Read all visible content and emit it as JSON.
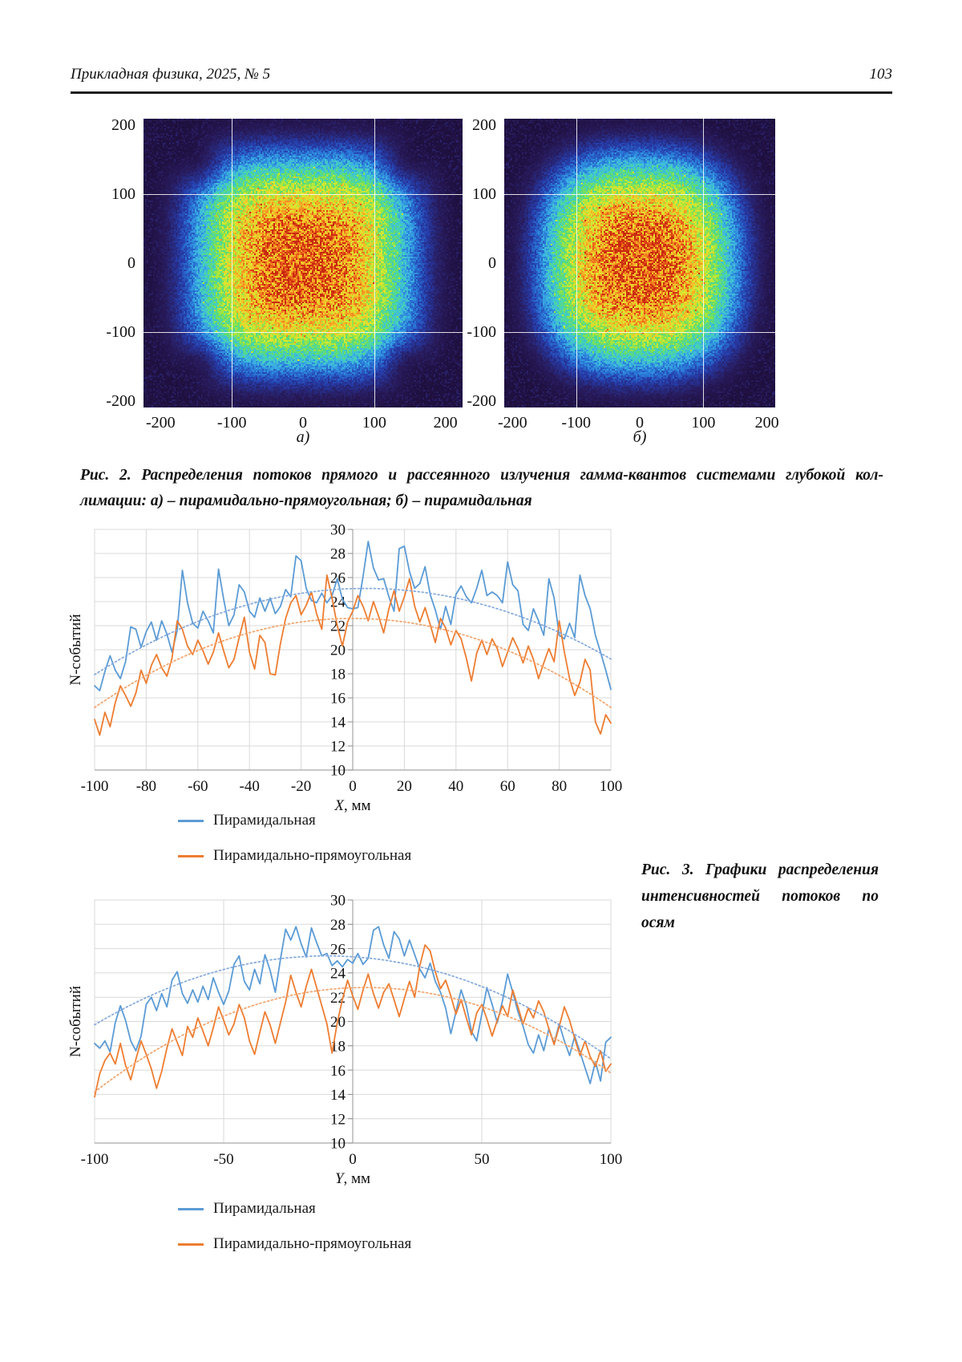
{
  "header": {
    "journal": "Прикладная физика, 2025, № 5",
    "page_number": "103"
  },
  "fig2": {
    "caption_lines": [
      "Рис. 2. Распределения потоков прямого и рассеянного излучения гамма-квантов системами глубокой кол-",
      "лимации: а) – пирамидально-прямоугольная; б) – пирамидальная"
    ]
  },
  "fig3": {
    "caption_lines": [
      "Рис. 3. Графики распределения",
      "интенсивностей потоков по",
      "осям"
    ]
  },
  "chart_data": [
    {
      "id": "heatmap-a",
      "type": "heatmap",
      "panel_label": "а)",
      "x_ticks": [
        -200,
        -100,
        0,
        100,
        200
      ],
      "y_ticks": [
        200,
        100,
        0,
        -100,
        -200
      ],
      "x_range": [
        -224,
        224
      ],
      "y_range": [
        -209,
        209
      ],
      "gridlines": [
        -100,
        100
      ],
      "grid_color": "#ffffff",
      "beam": {
        "p_norm": 3.6,
        "radius": 140,
        "falloff": 3,
        "peak": 0.88,
        "corner_wedges": true,
        "seed": 7
      },
      "colormap": [
        [
          0.0,
          "#1b0c36"
        ],
        [
          0.06,
          "#281a5a"
        ],
        [
          0.14,
          "#263caa"
        ],
        [
          0.22,
          "#2978d8"
        ],
        [
          0.3,
          "#3cb4e4"
        ],
        [
          0.38,
          "#46d4b4"
        ],
        [
          0.46,
          "#60dc6e"
        ],
        [
          0.55,
          "#a0e63e"
        ],
        [
          0.64,
          "#dee830"
        ],
        [
          0.74,
          "#f4c428"
        ],
        [
          0.84,
          "#f38c22"
        ],
        [
          0.92,
          "#e85418"
        ],
        [
          1.0,
          "#c82810"
        ]
      ]
    },
    {
      "id": "heatmap-b",
      "type": "heatmap",
      "panel_label": "б)",
      "x_ticks": [
        -200,
        -100,
        0,
        100,
        200
      ],
      "y_ticks": [
        200,
        100,
        0,
        -100,
        -200
      ],
      "x_range": [
        -213,
        213
      ],
      "y_range": [
        -209,
        209
      ],
      "gridlines": [
        -100,
        100
      ],
      "grid_color": "#ffffff",
      "beam": {
        "p_norm": 2.7,
        "radius": 140,
        "falloff": 3,
        "peak": 0.88,
        "corner_wedges": false,
        "seed": 13
      },
      "colormap": [
        [
          0.0,
          "#1b0c36"
        ],
        [
          0.06,
          "#281a5a"
        ],
        [
          0.14,
          "#263caa"
        ],
        [
          0.22,
          "#2978d8"
        ],
        [
          0.3,
          "#3cb4e4"
        ],
        [
          0.38,
          "#46d4b4"
        ],
        [
          0.46,
          "#60dc6e"
        ],
        [
          0.55,
          "#a0e63e"
        ],
        [
          0.64,
          "#dee830"
        ],
        [
          0.74,
          "#f4c428"
        ],
        [
          0.84,
          "#f38c22"
        ],
        [
          0.92,
          "#e85418"
        ],
        [
          1.0,
          "#c82810"
        ]
      ]
    },
    {
      "id": "profile-x",
      "type": "line",
      "xlabel": "X, мм",
      "ylabel": "N-событий",
      "xlim": [
        -100,
        100
      ],
      "ylim": [
        10,
        30
      ],
      "x_ticks": [
        -100,
        -80,
        -60,
        -40,
        -20,
        0,
        20,
        40,
        60,
        80,
        100
      ],
      "y_ticks": [
        10,
        12,
        14,
        16,
        18,
        20,
        22,
        24,
        26,
        28,
        30
      ],
      "grid_color": "#d9d9d9",
      "axis_color": "#a6a6a6",
      "x_start": -100,
      "x_step": 2,
      "series": [
        {
          "name": "Пирамидальная",
          "color": "#5B9BD5",
          "style": "solid",
          "values": [
            17.0,
            16.6,
            18.2,
            19.5,
            18.3,
            17.6,
            19.0,
            21.9,
            21.7,
            20.2,
            21.5,
            22.3,
            20.8,
            22.4,
            21.3,
            19.8,
            21.6,
            26.6,
            23.9,
            22.2,
            21.8,
            23.2,
            22.4,
            21.4,
            26.7,
            24.2,
            22.0,
            22.9,
            25.4,
            24.8,
            23.2,
            22.7,
            24.3,
            23.2,
            24.3,
            23.0,
            23.6,
            25.0,
            24.4,
            27.8,
            27.4,
            25.1,
            24.1,
            23.9,
            24.7,
            23.9,
            24.5,
            25.9,
            24.2,
            23.5,
            23.4,
            23.5,
            26.1,
            29.0,
            26.8,
            25.8,
            25.9,
            24.4,
            23.2,
            28.4,
            28.6,
            26.5,
            25.1,
            25.5,
            26.9,
            24.6,
            23.3,
            21.7,
            23.6,
            22.1,
            24.6,
            25.3,
            24.4,
            23.9,
            25.1,
            26.6,
            24.5,
            24.8,
            24.5,
            23.9,
            27.3,
            25.4,
            24.9,
            22.1,
            21.6,
            23.4,
            22.4,
            21.2,
            25.9,
            24.3,
            21.2,
            20.9,
            22.2,
            21.0,
            26.2,
            24.5,
            23.4,
            21.2,
            19.8,
            18.3,
            16.7
          ]
        },
        {
          "name": "Пирамидально-прямоугольная",
          "color": "#ED7D31",
          "style": "solid",
          "values": [
            14.2,
            12.9,
            14.8,
            13.6,
            15.6,
            17.0,
            16.2,
            15.3,
            16.4,
            18.3,
            17.2,
            18.7,
            19.6,
            18.5,
            17.8,
            19.3,
            22.4,
            21.7,
            20.3,
            19.6,
            20.8,
            19.9,
            18.8,
            19.8,
            21.4,
            19.9,
            18.5,
            19.2,
            21.0,
            22.7,
            19.8,
            18.4,
            21.2,
            20.6,
            18.0,
            17.9,
            20.5,
            22.6,
            23.9,
            24.5,
            22.9,
            23.7,
            24.8,
            23.0,
            21.7,
            26.2,
            24.3,
            22.0,
            20.3,
            22.3,
            23.2,
            24.5,
            23.6,
            22.4,
            24.0,
            22.8,
            21.4,
            23.4,
            24.9,
            23.2,
            24.4,
            25.9,
            23.6,
            22.3,
            23.5,
            22.1,
            20.6,
            22.6,
            21.8,
            20.4,
            21.6,
            20.9,
            19.3,
            17.4,
            19.7,
            20.8,
            19.6,
            20.9,
            20.1,
            18.6,
            19.8,
            21.0,
            20.1,
            18.9,
            20.3,
            19.2,
            17.6,
            18.9,
            20.1,
            19.0,
            22.4,
            19.8,
            17.6,
            16.2,
            17.3,
            19.2,
            18.3,
            14.0,
            13.0,
            14.6,
            13.9
          ]
        },
        {
          "trend_of": "Пирамидальная",
          "color": "#85A9DC",
          "style": "dotted",
          "poly": [
            25.08,
            0.0065,
            -0.00065
          ]
        },
        {
          "trend_of": "Пирамидально-прямоугольная",
          "color": "#F2A36B",
          "style": "dotted",
          "poly": [
            22.6,
            0.0,
            -0.00074
          ]
        }
      ],
      "legend": [
        {
          "label": "Пирамидальная",
          "color": "#5B9BD5"
        },
        {
          "label": "Пирамидально-прямоугольная",
          "color": "#ED7D31"
        }
      ]
    },
    {
      "id": "profile-y",
      "type": "line",
      "xlabel": "Y, мм",
      "ylabel": "N-событий",
      "xlim": [
        -100,
        100
      ],
      "ylim": [
        10,
        30
      ],
      "x_ticks": [
        -100,
        -50,
        0,
        50,
        100
      ],
      "y_ticks": [
        10,
        12,
        14,
        16,
        18,
        20,
        22,
        24,
        26,
        28,
        30
      ],
      "grid_color": "#d9d9d9",
      "axis_color": "#a6a6a6",
      "x_start": -100,
      "x_step": 2,
      "series": [
        {
          "name": "Пирамидальная",
          "color": "#5B9BD5",
          "style": "solid",
          "values": [
            18.2,
            17.8,
            18.4,
            17.5,
            19.9,
            21.3,
            20.1,
            18.4,
            17.6,
            18.8,
            21.4,
            22.0,
            20.9,
            22.3,
            21.2,
            23.4,
            24.1,
            22.3,
            21.5,
            22.6,
            21.6,
            22.9,
            21.8,
            23.6,
            22.4,
            21.4,
            22.5,
            24.7,
            25.4,
            23.3,
            22.6,
            24.3,
            23.1,
            25.5,
            24.2,
            22.4,
            25.1,
            27.6,
            26.7,
            27.8,
            26.4,
            25.3,
            27.7,
            26.5,
            25.4,
            25.6,
            24.6,
            25.0,
            24.5,
            25.1,
            24.8,
            25.6,
            24.7,
            25.2,
            27.5,
            27.8,
            26.3,
            25.2,
            27.4,
            26.8,
            25.4,
            26.7,
            25.5,
            24.3,
            23.6,
            24.8,
            23.3,
            22.4,
            21.1,
            19.0,
            20.8,
            22.6,
            21.3,
            19.2,
            18.4,
            20.6,
            22.8,
            21.4,
            19.9,
            21.7,
            23.9,
            22.4,
            20.8,
            19.6,
            18.1,
            17.4,
            18.9,
            17.6,
            19.4,
            18.2,
            19.8,
            18.4,
            17.2,
            18.8,
            17.5,
            16.2,
            14.9,
            16.7,
            15.1,
            18.3,
            18.7
          ]
        },
        {
          "name": "Пирамидально-прямоугольная",
          "color": "#ED7D31",
          "style": "solid",
          "values": [
            13.8,
            15.7,
            16.8,
            17.4,
            16.5,
            18.2,
            16.4,
            15.2,
            16.9,
            18.4,
            17.3,
            16.1,
            14.5,
            15.9,
            17.8,
            19.4,
            18.3,
            17.2,
            19.6,
            18.7,
            20.3,
            19.2,
            18.0,
            19.5,
            21.2,
            20.1,
            18.9,
            19.8,
            21.4,
            20.3,
            18.4,
            17.3,
            19.1,
            20.8,
            19.7,
            18.2,
            19.9,
            21.6,
            23.8,
            22.4,
            21.2,
            22.9,
            24.3,
            22.8,
            21.3,
            19.8,
            17.4,
            19.9,
            21.8,
            23.4,
            22.1,
            21.0,
            22.6,
            23.9,
            22.3,
            21.1,
            22.4,
            23.1,
            21.8,
            20.4,
            21.9,
            23.3,
            22.0,
            24.6,
            26.3,
            25.8,
            24.1,
            22.7,
            23.4,
            22.1,
            20.6,
            21.8,
            20.3,
            18.9,
            20.7,
            21.4,
            20.2,
            18.8,
            20.1,
            21.3,
            20.4,
            22.6,
            21.2,
            19.8,
            21.1,
            20.3,
            21.7,
            20.8,
            19.4,
            18.1,
            19.6,
            21.2,
            20.1,
            18.6,
            17.2,
            18.4,
            17.1,
            16.3,
            17.6,
            15.9,
            16.5
          ]
        },
        {
          "trend_of": "Пирамидальная",
          "color": "#85A9DC",
          "style": "dotted",
          "poly": [
            25.33,
            -0.014,
            -0.0007
          ]
        },
        {
          "trend_of": "Пирамидально-прямоугольная",
          "color": "#F2A36B",
          "style": "dotted",
          "poly": [
            22.78,
            0.0078,
            -0.00078
          ]
        }
      ],
      "legend": [
        {
          "label": "Пирамидальная",
          "color": "#5B9BD5"
        },
        {
          "label": "Пирамидально-прямоугольная",
          "color": "#ED7D31"
        }
      ]
    }
  ]
}
